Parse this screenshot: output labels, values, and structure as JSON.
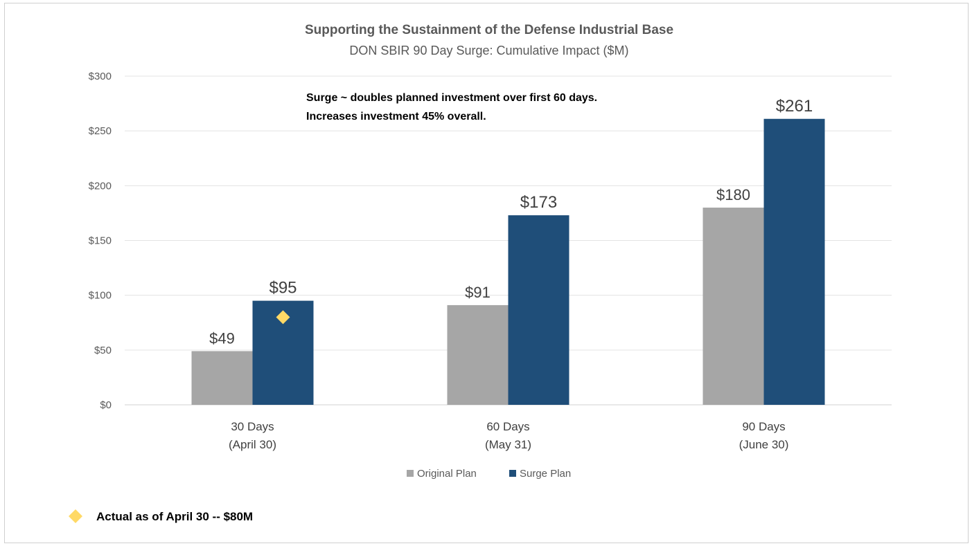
{
  "chart_data": {
    "type": "bar",
    "title": "Supporting the Sustainment of the Defense Industrial Base",
    "subtitle": "DON SBIR 90 Day Surge:  Cumulative Impact ($M)",
    "categories": [
      [
        "30 Days",
        "(April 30)"
      ],
      [
        "60 Days",
        "(May 31)"
      ],
      [
        "90 Days",
        "(June 30)"
      ]
    ],
    "series": [
      {
        "name": "Original Plan",
        "color": "#a6a6a6",
        "values": [
          49,
          91,
          180
        ],
        "labels": [
          "$49",
          "$91",
          "$180"
        ]
      },
      {
        "name": "Surge Plan",
        "color": "#1f4e79",
        "values": [
          95,
          173,
          261
        ],
        "labels": [
          "$95",
          "$173",
          "$261"
        ]
      }
    ],
    "ylim": [
      0,
      300
    ],
    "yticks": [
      0,
      50,
      100,
      150,
      200,
      250,
      300
    ],
    "ytick_labels": [
      "$0",
      "$50",
      "$100",
      "$150",
      "$200",
      "$250",
      "$300"
    ],
    "grid": true,
    "legend": "bottom",
    "annotation": [
      "Surge ~ doubles planned investment over first 60 days.",
      "Increases investment 45% overall."
    ],
    "marker": {
      "category_index": 0,
      "value": 80,
      "color": "#ffd966",
      "shape": "diamond",
      "label": "Actual as of April 30 -- $80M"
    }
  }
}
